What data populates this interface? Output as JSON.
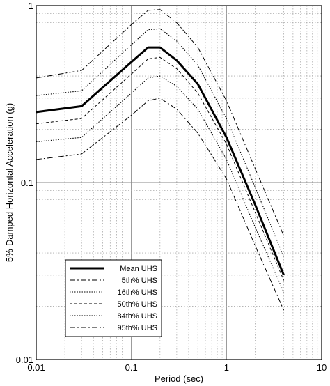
{
  "chart_data": {
    "type": "line",
    "title": "",
    "xlabel": "Period (sec)",
    "ylabel": "5%-Damped Horizontal Acceleration (g)",
    "xscale": "log",
    "yscale": "log",
    "xlim": [
      0.01,
      10
    ],
    "ylim": [
      0.01,
      1
    ],
    "grid": true,
    "legend_position": "lower-left",
    "x_ticks": [
      "0.01",
      "0.1",
      "1",
      "10"
    ],
    "y_ticks": [
      "0.01",
      "0.1",
      "1"
    ],
    "series": [
      {
        "name": "Mean UHS",
        "style": "solid-thick",
        "x": [
          0.01,
          0.03,
          0.1,
          0.15,
          0.2,
          0.3,
          0.5,
          1.0,
          2.0,
          4.0
        ],
        "y": [
          0.25,
          0.27,
          0.48,
          0.58,
          0.58,
          0.49,
          0.36,
          0.18,
          0.075,
          0.03
        ]
      },
      {
        "name": "5th% UHS",
        "style": "dashdot",
        "x": [
          0.01,
          0.03,
          0.1,
          0.15,
          0.2,
          0.3,
          0.5,
          1.0,
          2.0,
          4.0
        ],
        "y": [
          0.135,
          0.145,
          0.24,
          0.29,
          0.3,
          0.26,
          0.19,
          0.105,
          0.044,
          0.019
        ]
      },
      {
        "name": "16th% UHS",
        "style": "dotted",
        "x": [
          0.01,
          0.03,
          0.1,
          0.15,
          0.2,
          0.3,
          0.5,
          1.0,
          2.0,
          4.0
        ],
        "y": [
          0.17,
          0.18,
          0.32,
          0.39,
          0.4,
          0.35,
          0.26,
          0.135,
          0.056,
          0.024
        ]
      },
      {
        "name": "50th% UHS",
        "style": "dashed",
        "x": [
          0.01,
          0.03,
          0.1,
          0.15,
          0.2,
          0.3,
          0.5,
          1.0,
          2.0,
          4.0
        ],
        "y": [
          0.215,
          0.23,
          0.41,
          0.5,
          0.51,
          0.44,
          0.32,
          0.165,
          0.068,
          0.028
        ]
      },
      {
        "name": "84th% UHS",
        "style": "dotted",
        "x": [
          0.01,
          0.03,
          0.1,
          0.15,
          0.2,
          0.3,
          0.5,
          1.0,
          2.0,
          4.0
        ],
        "y": [
          0.31,
          0.33,
          0.6,
          0.73,
          0.74,
          0.63,
          0.46,
          0.23,
          0.094,
          0.038
        ]
      },
      {
        "name": "95th% UHS",
        "style": "dashdot",
        "x": [
          0.01,
          0.03,
          0.1,
          0.15,
          0.2,
          0.3,
          0.5,
          1.0,
          2.0,
          4.0
        ],
        "y": [
          0.39,
          0.43,
          0.78,
          0.94,
          0.95,
          0.8,
          0.58,
          0.29,
          0.12,
          0.05
        ]
      }
    ]
  }
}
